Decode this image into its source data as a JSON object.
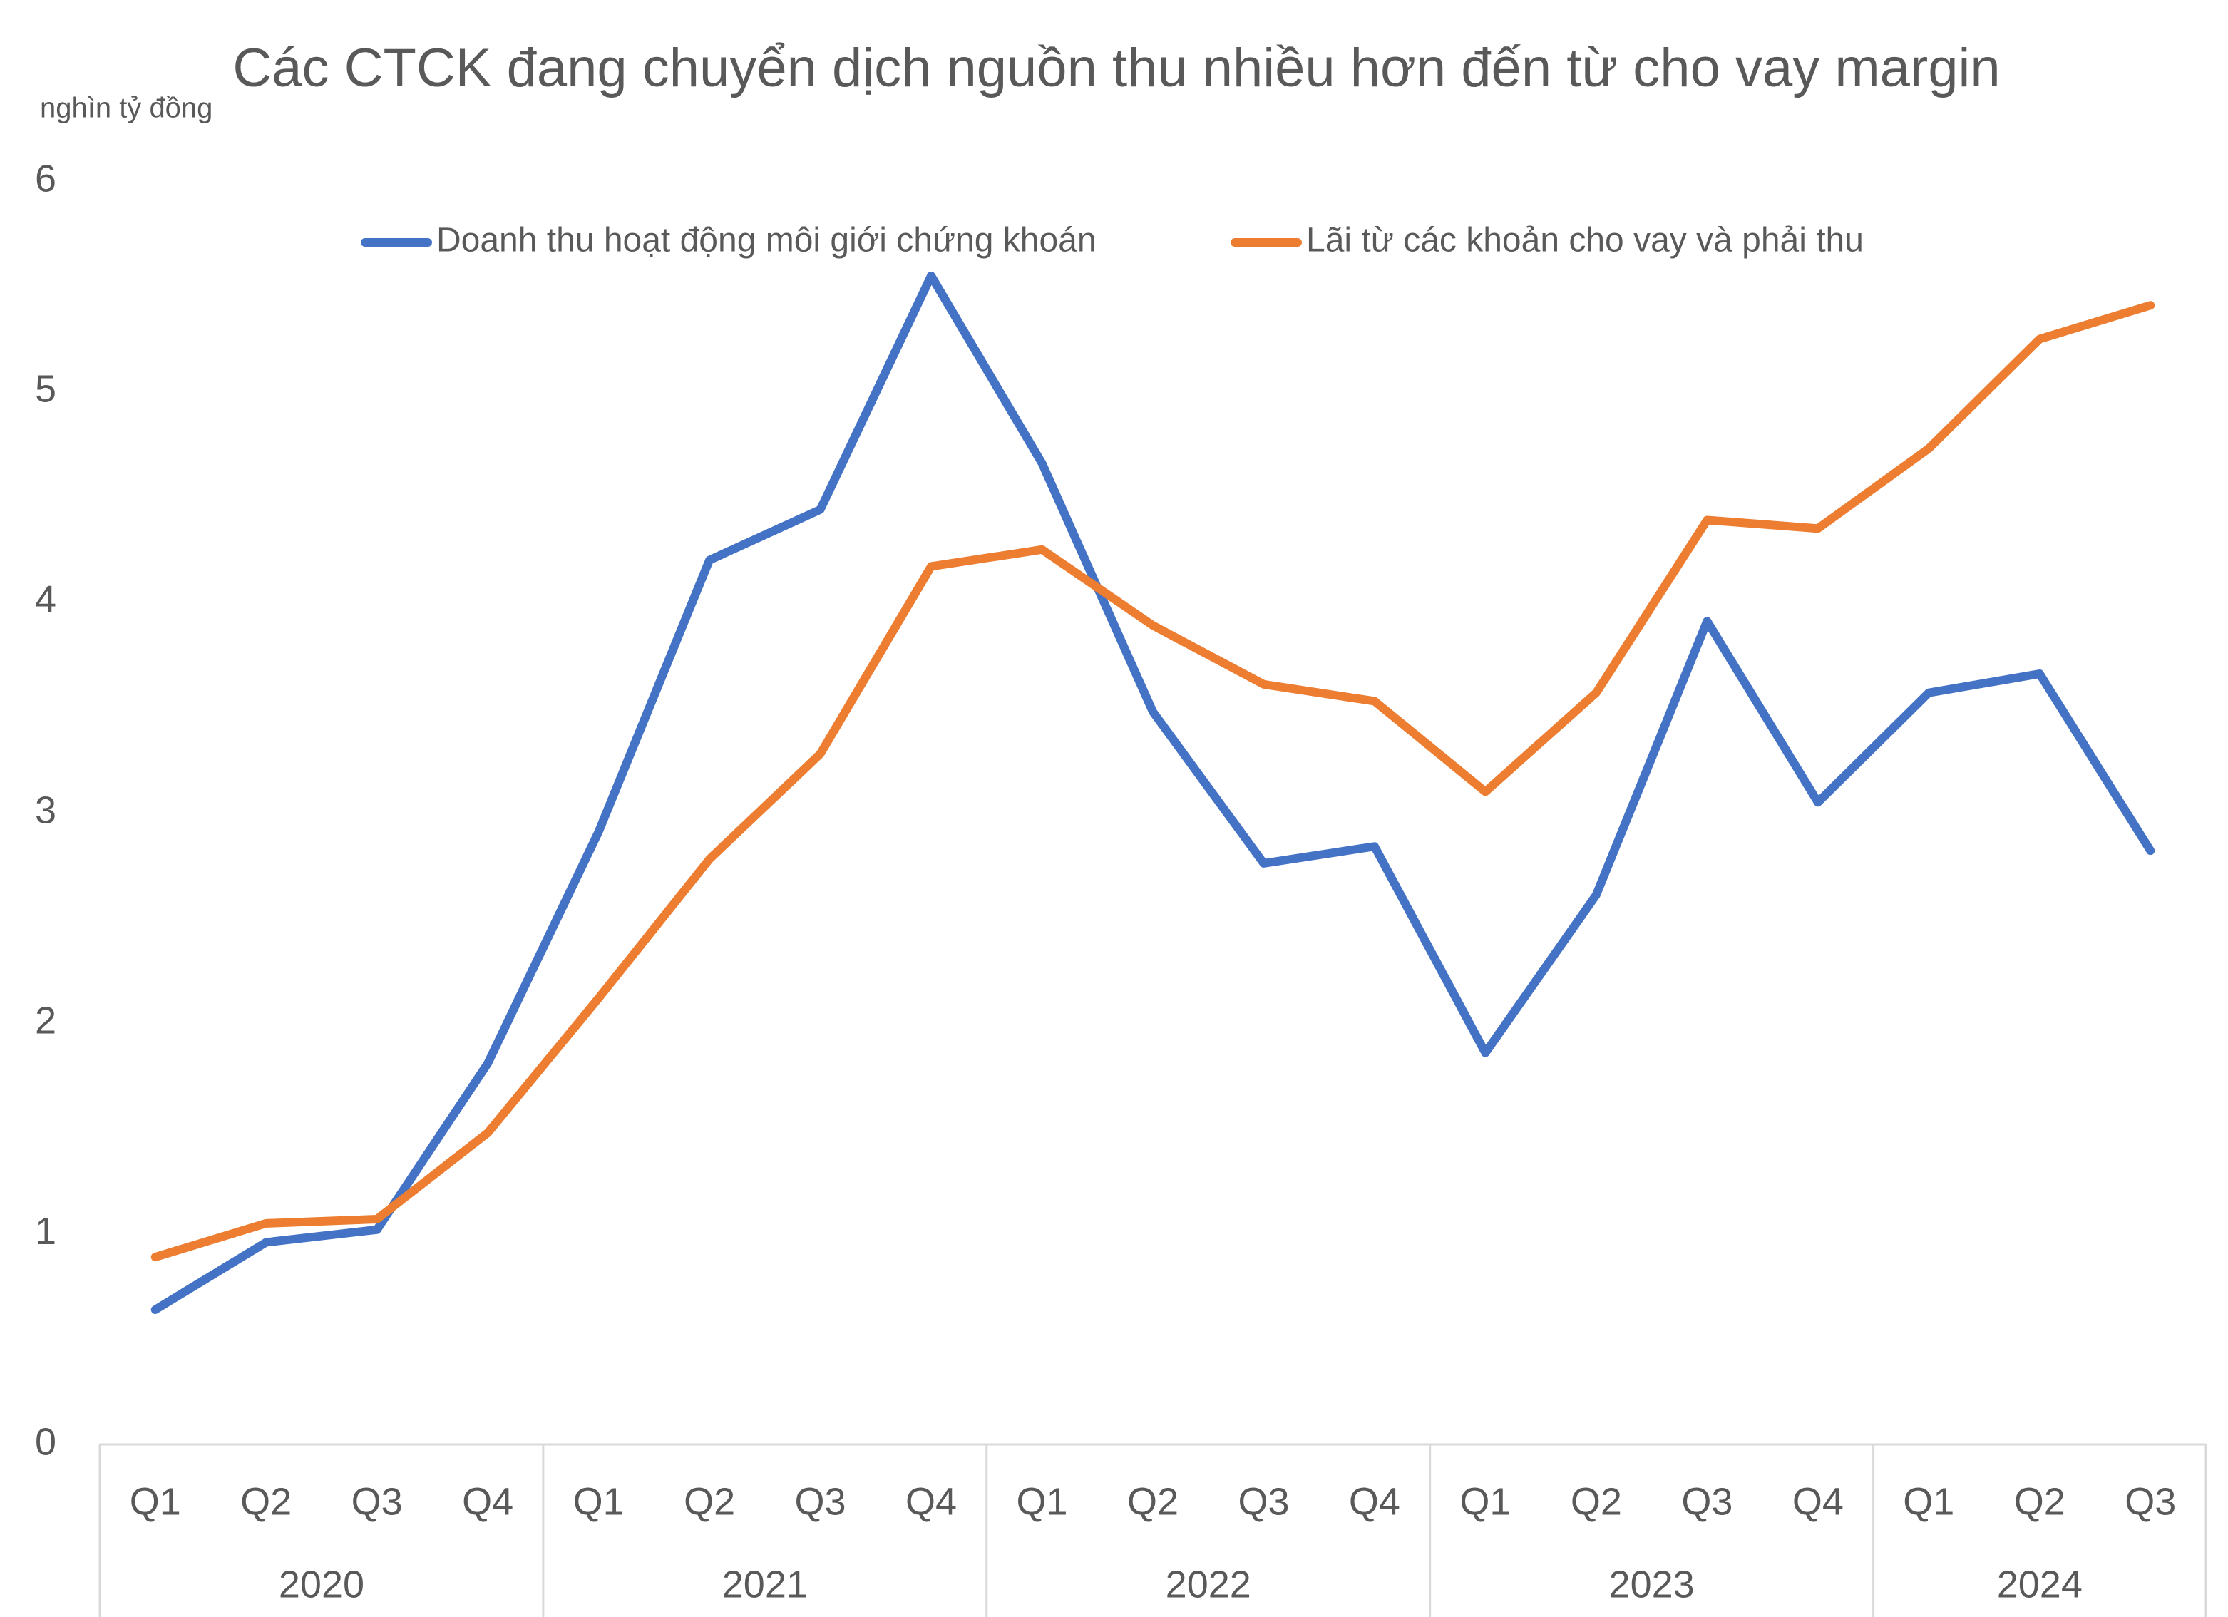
{
  "chart_data": {
    "type": "line",
    "title": "Các CTCK đang chuyển dịch nguồn thu nhiều hơn đến từ cho vay margin",
    "y_label": "nghìn tỷ đồng",
    "groups": [
      {
        "name": "2020",
        "categories": [
          "Q1",
          "Q2",
          "Q3",
          "Q4"
        ]
      },
      {
        "name": "2021",
        "categories": [
          "Q1",
          "Q2",
          "Q3",
          "Q4"
        ]
      },
      {
        "name": "2022",
        "categories": [
          "Q1",
          "Q2",
          "Q3",
          "Q4"
        ]
      },
      {
        "name": "2023",
        "categories": [
          "Q1",
          "Q2",
          "Q3",
          "Q4"
        ]
      },
      {
        "name": "2024",
        "categories": [
          "Q1",
          "Q2",
          "Q3"
        ]
      }
    ],
    "series": [
      {
        "name": "Doanh thu hoạt động môi giới chứng khoán",
        "color": "#4472c4",
        "values": [
          0.64,
          0.96,
          1.02,
          1.81,
          2.91,
          4.2,
          4.44,
          5.55,
          4.66,
          3.48,
          2.76,
          2.84,
          1.86,
          2.61,
          3.91,
          3.05,
          3.57,
          3.66,
          2.82
        ]
      },
      {
        "name": "Lãi từ các khoản cho vay và phải thu",
        "color": "#ed7d31",
        "values": [
          0.89,
          1.05,
          1.07,
          1.48,
          2.12,
          2.78,
          3.28,
          4.17,
          4.25,
          3.89,
          3.61,
          3.53,
          3.1,
          3.57,
          4.39,
          4.35,
          4.73,
          5.25,
          5.41
        ]
      }
    ],
    "ylim": [
      0,
      6
    ],
    "yticks": [
      0,
      1,
      2,
      3,
      4,
      5,
      6
    ],
    "grid": false,
    "legend": "top"
  }
}
